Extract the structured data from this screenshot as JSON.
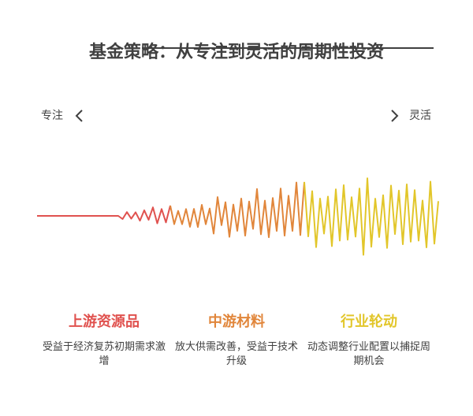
{
  "title": "基金策略：从专注到灵活的周期性投资",
  "axis": {
    "left_label": "专注",
    "right_label": "灵活",
    "left_icon": "chevron-left-icon",
    "right_icon": "chevron-right-icon"
  },
  "colors": {
    "text": "#404040",
    "upstream": "#e0524f",
    "midstream": "#e1863b",
    "rotation": "#e2c62a"
  },
  "stages": [
    {
      "title": "上游资源品",
      "desc": "受益于经济复苏初期需求激增",
      "color": "#e0524f"
    },
    {
      "title": "中游材料",
      "desc": "放大供需改善，受益于技术升级",
      "color": "#e1863b"
    },
    {
      "title": "行业轮动",
      "desc": "动态调整行业配置以捕捉周期机会",
      "color": "#e2c62a"
    }
  ]
}
